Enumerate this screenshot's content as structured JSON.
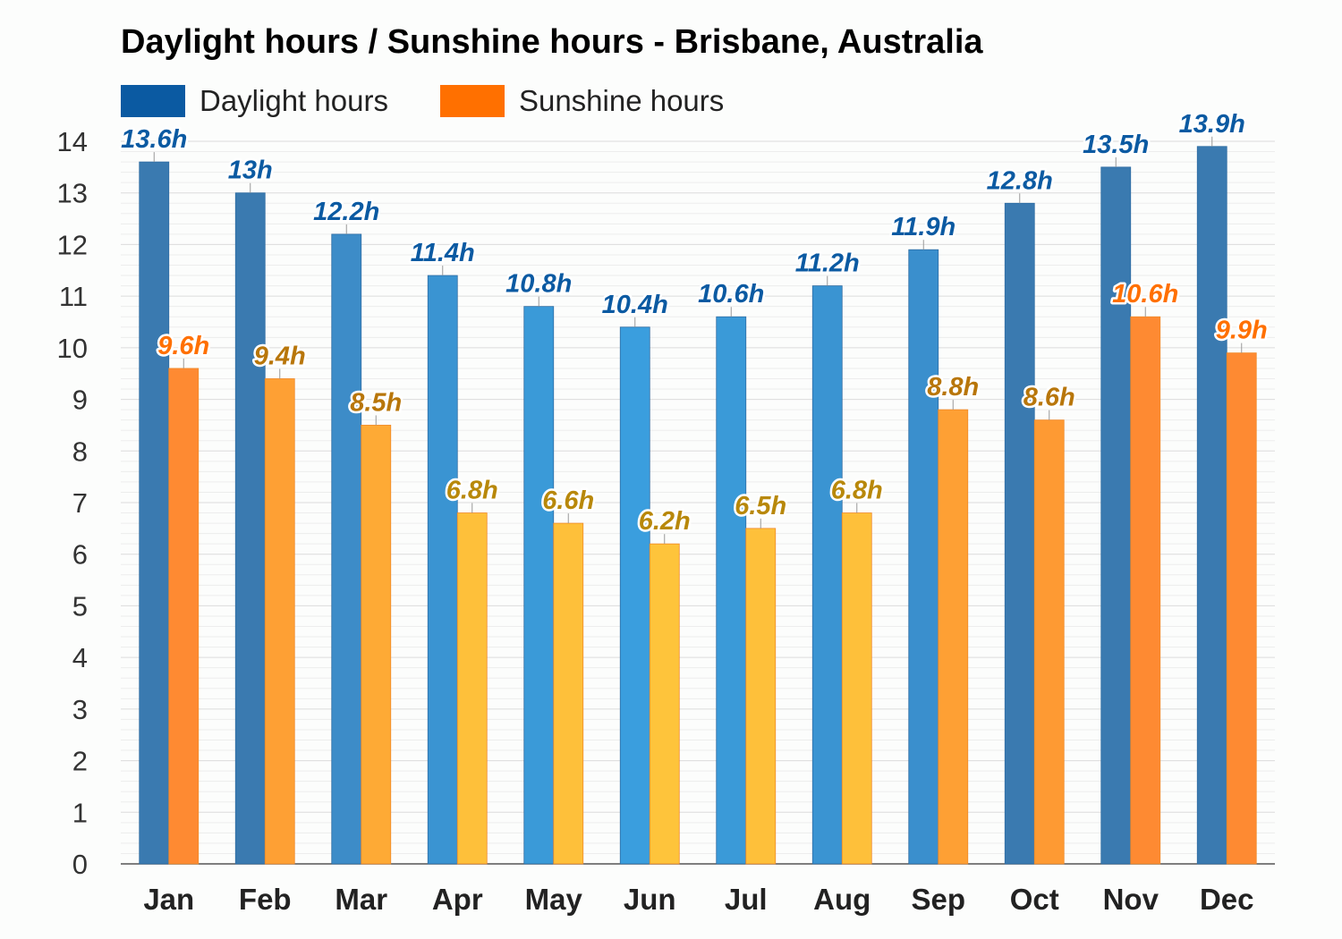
{
  "chart_data": {
    "type": "bar",
    "title": "Daylight hours / Sunshine hours - Brisbane, Australia",
    "xlabel": "",
    "ylabel": "",
    "ylim": [
      0,
      14
    ],
    "yticks": [
      "0",
      "1",
      "2",
      "3",
      "4",
      "5",
      "6",
      "7",
      "8",
      "9",
      "10",
      "11",
      "12",
      "13",
      "14"
    ],
    "grid": true,
    "legend_position": "top-left",
    "categories": [
      "Jan",
      "Feb",
      "Mar",
      "Apr",
      "May",
      "Jun",
      "Jul",
      "Aug",
      "Sep",
      "Oct",
      "Nov",
      "Dec"
    ],
    "series": [
      {
        "name": "Daylight hours",
        "legend_color": "#0b5aa2",
        "values": [
          13.6,
          13,
          12.2,
          11.4,
          10.8,
          10.4,
          10.6,
          11.2,
          11.9,
          12.8,
          13.5,
          13.9
        ],
        "labels": [
          "13.6h",
          "13h",
          "12.2h",
          "11.4h",
          "10.8h",
          "10.4h",
          "10.6h",
          "11.2h",
          "11.9h",
          "12.8h",
          "13.5h",
          "13.9h"
        ],
        "bar_colors": [
          "#3a7ab0",
          "#3a7ab0",
          "#3d8cc8",
          "#3a94d2",
          "#3a9ad8",
          "#3a9ede",
          "#3a9ad8",
          "#3a94d2",
          "#3a8fcd",
          "#3a7ab0",
          "#3a7ab0",
          "#3a7ab0"
        ],
        "label_color": "#0b5aa2"
      },
      {
        "name": "Sunshine hours",
        "legend_color": "#ff7000",
        "values": [
          9.6,
          9.4,
          8.5,
          6.8,
          6.6,
          6.2,
          6.5,
          6.8,
          8.8,
          8.6,
          10.6,
          9.9
        ],
        "labels": [
          "9.6h",
          "9.4h",
          "8.5h",
          "6.8h",
          "6.6h",
          "6.2h",
          "6.5h",
          "6.8h",
          "8.8h",
          "8.6h",
          "10.6h",
          "9.9h"
        ],
        "bar_colors": [
          "#fe8a32",
          "#fea034",
          "#feaa35",
          "#fec03a",
          "#fec03a",
          "#fec43b",
          "#fec03a",
          "#fec03a",
          "#fea034",
          "#fe9a33",
          "#fe8a32",
          "#fe8a32"
        ],
        "label_colors": [
          "#ff7000",
          "#b8760a",
          "#b8760a",
          "#b8880a",
          "#b8880a",
          "#b8880a",
          "#b8880a",
          "#b8880a",
          "#b8760a",
          "#b8760a",
          "#ff7000",
          "#ff7000"
        ]
      }
    ]
  }
}
